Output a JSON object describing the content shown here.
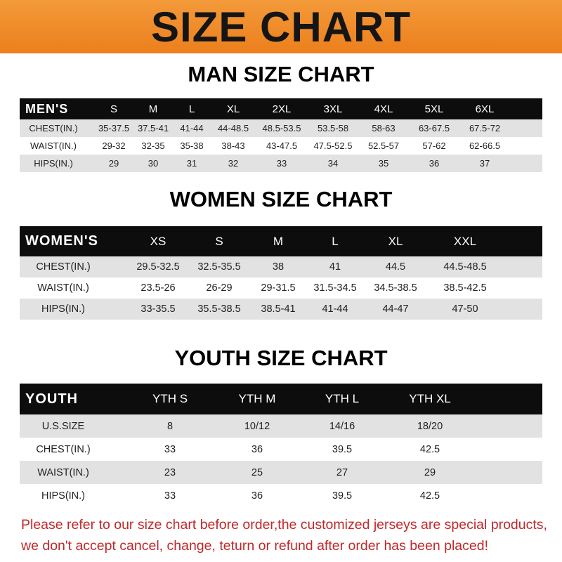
{
  "banner_title": "SIZE CHART",
  "colors": {
    "banner": "#ef8a28",
    "header_bg": "#0d0d0d",
    "row_alt": "#e2e2e2",
    "note": "#c0282a"
  },
  "men": {
    "title": "MAN SIZE CHART",
    "header": [
      "MEN'S",
      "S",
      "M",
      "L",
      "XL",
      "2XL",
      "3XL",
      "4XL",
      "5XL",
      "6XL"
    ],
    "rows": [
      [
        "CHEST(IN.)",
        "35-37.5",
        "37.5-41",
        "41-44",
        "44-48.5",
        "48.5-53.5",
        "53.5-58",
        "58-63",
        "63-67.5",
        "67.5-72"
      ],
      [
        "WAIST(IN.)",
        "29-32",
        "32-35",
        "35-38",
        "38-43",
        "43-47.5",
        "47.5-52.5",
        "52.5-57",
        "57-62",
        "62-66.5"
      ],
      [
        "HIPS(IN.)",
        "29",
        "30",
        "31",
        "32",
        "33",
        "34",
        "35",
        "36",
        "37"
      ]
    ]
  },
  "women": {
    "title": "WOMEN SIZE CHART",
    "header": [
      "WOMEN'S",
      "XS",
      "S",
      "M",
      "L",
      "XL",
      "XXL"
    ],
    "rows": [
      [
        "CHEST(IN.)",
        "29.5-32.5",
        "32.5-35.5",
        "38",
        "41",
        "44.5",
        "44.5-48.5"
      ],
      [
        "WAIST(IN.)",
        "23.5-26",
        "26-29",
        "29-31.5",
        "31.5-34.5",
        "34.5-38.5",
        "38.5-42.5"
      ],
      [
        "HIPS(IN.)",
        "33-35.5",
        "35.5-38.5",
        "38.5-41",
        "41-44",
        "44-47",
        "47-50"
      ]
    ]
  },
  "youth": {
    "title": "YOUTH SIZE CHART",
    "header": [
      "YOUTH",
      "YTH S",
      "YTH M",
      "YTH L",
      "YTH XL"
    ],
    "rows": [
      [
        "U.S.SIZE",
        "8",
        "10/12",
        "14/16",
        "18/20"
      ],
      [
        "CHEST(IN.)",
        "33",
        "36",
        "39.5",
        "42.5"
      ],
      [
        "WAIST(IN.)",
        "23",
        "25",
        "27",
        "29"
      ],
      [
        "HIPS(IN.)",
        "33",
        "36",
        "39.5",
        "42.5"
      ]
    ]
  },
  "note": {
    "line1": "Please refer to our size chart before order,the customized jerseys are special products,",
    "line2": "we don't accept cancel, change, teturn or refund after order has been placed!"
  }
}
